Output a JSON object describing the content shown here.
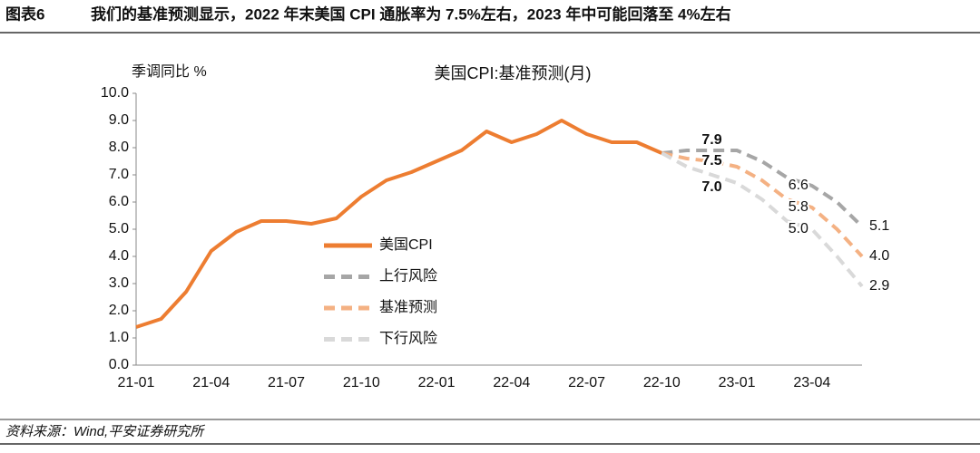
{
  "header": {
    "label": "图表6",
    "title": "我们的基准预测显示，2022 年末美国 CPI 通胀率为 7.5%左右，2023 年中可能回落至 4%左右"
  },
  "source": "资料来源：Wind,平安证券研究所",
  "chart_data": {
    "type": "line",
    "title": "美国CPI:基准预测(月)",
    "y_label": "季调同比 %",
    "categories": [
      "21-01",
      null,
      null,
      "21-04",
      null,
      null,
      "21-07",
      null,
      null,
      "21-10",
      null,
      null,
      "22-01",
      null,
      null,
      "22-04",
      null,
      null,
      "22-07",
      null,
      null,
      "22-10",
      null,
      null,
      "23-01",
      null,
      null,
      "23-04",
      null,
      null
    ],
    "ylim": [
      0,
      10
    ],
    "yticks": [
      {
        "value": 0,
        "label": "0.0"
      },
      {
        "value": 1,
        "label": "1.0"
      },
      {
        "value": 2,
        "label": "2.0"
      },
      {
        "value": 3,
        "label": "3.0"
      },
      {
        "value": 4,
        "label": "4.0"
      },
      {
        "value": 5,
        "label": "5.0"
      },
      {
        "value": 6,
        "label": "6.0"
      },
      {
        "value": 7,
        "label": "7.0"
      },
      {
        "value": 8,
        "label": "8.0"
      },
      {
        "value": 9,
        "label": "9.0"
      },
      {
        "value": 10,
        "label": "10.0"
      }
    ],
    "legend": "inside-left",
    "series": [
      {
        "name": "美国CPI",
        "color": "#ed7d31",
        "dashed": false,
        "values": [
          1.4,
          1.7,
          2.7,
          4.2,
          4.9,
          5.3,
          5.3,
          5.2,
          5.4,
          6.2,
          6.8,
          7.1,
          7.5,
          7.9,
          8.6,
          8.2,
          8.5,
          9.0,
          8.5,
          8.2,
          8.2,
          7.8,
          null,
          null,
          null,
          null,
          null,
          null,
          null,
          null
        ]
      },
      {
        "name": "上行风险",
        "color": "#a6a6a6",
        "dashed": true,
        "values": [
          null,
          null,
          null,
          null,
          null,
          null,
          null,
          null,
          null,
          null,
          null,
          null,
          null,
          null,
          null,
          null,
          null,
          null,
          null,
          null,
          null,
          7.8,
          7.9,
          7.9,
          7.9,
          7.5,
          6.9,
          6.6,
          6.0,
          5.1
        ],
        "value_labels": [
          null,
          null,
          null,
          null,
          null,
          null,
          null,
          null,
          null,
          null,
          null,
          null,
          null,
          null,
          null,
          null,
          null,
          null,
          null,
          null,
          null,
          null,
          null,
          "7.9",
          null,
          null,
          null,
          "6.6",
          null,
          "5.1"
        ]
      },
      {
        "name": "基准预测",
        "color": "#f4b183",
        "dashed": true,
        "values": [
          null,
          null,
          null,
          null,
          null,
          null,
          null,
          null,
          null,
          null,
          null,
          null,
          null,
          null,
          null,
          null,
          null,
          null,
          null,
          null,
          null,
          7.8,
          7.6,
          7.5,
          7.3,
          6.8,
          6.1,
          5.8,
          5.0,
          4.0
        ],
        "value_labels": [
          null,
          null,
          null,
          null,
          null,
          null,
          null,
          null,
          null,
          null,
          null,
          null,
          null,
          null,
          null,
          null,
          null,
          null,
          null,
          null,
          null,
          null,
          null,
          "7.5",
          null,
          null,
          null,
          "5.8",
          null,
          "4.0"
        ]
      },
      {
        "name": "下行风险",
        "color": "#d9d9d9",
        "dashed": true,
        "values": [
          null,
          null,
          null,
          null,
          null,
          null,
          null,
          null,
          null,
          null,
          null,
          null,
          null,
          null,
          null,
          null,
          null,
          null,
          null,
          null,
          null,
          7.8,
          7.3,
          7.0,
          6.7,
          6.1,
          5.3,
          5.0,
          4.0,
          2.9
        ],
        "value_labels": [
          null,
          null,
          null,
          null,
          null,
          null,
          null,
          null,
          null,
          null,
          null,
          null,
          null,
          null,
          null,
          null,
          null,
          null,
          null,
          null,
          null,
          null,
          null,
          "7.0",
          null,
          null,
          null,
          "5.0",
          null,
          "2.9"
        ]
      }
    ]
  }
}
